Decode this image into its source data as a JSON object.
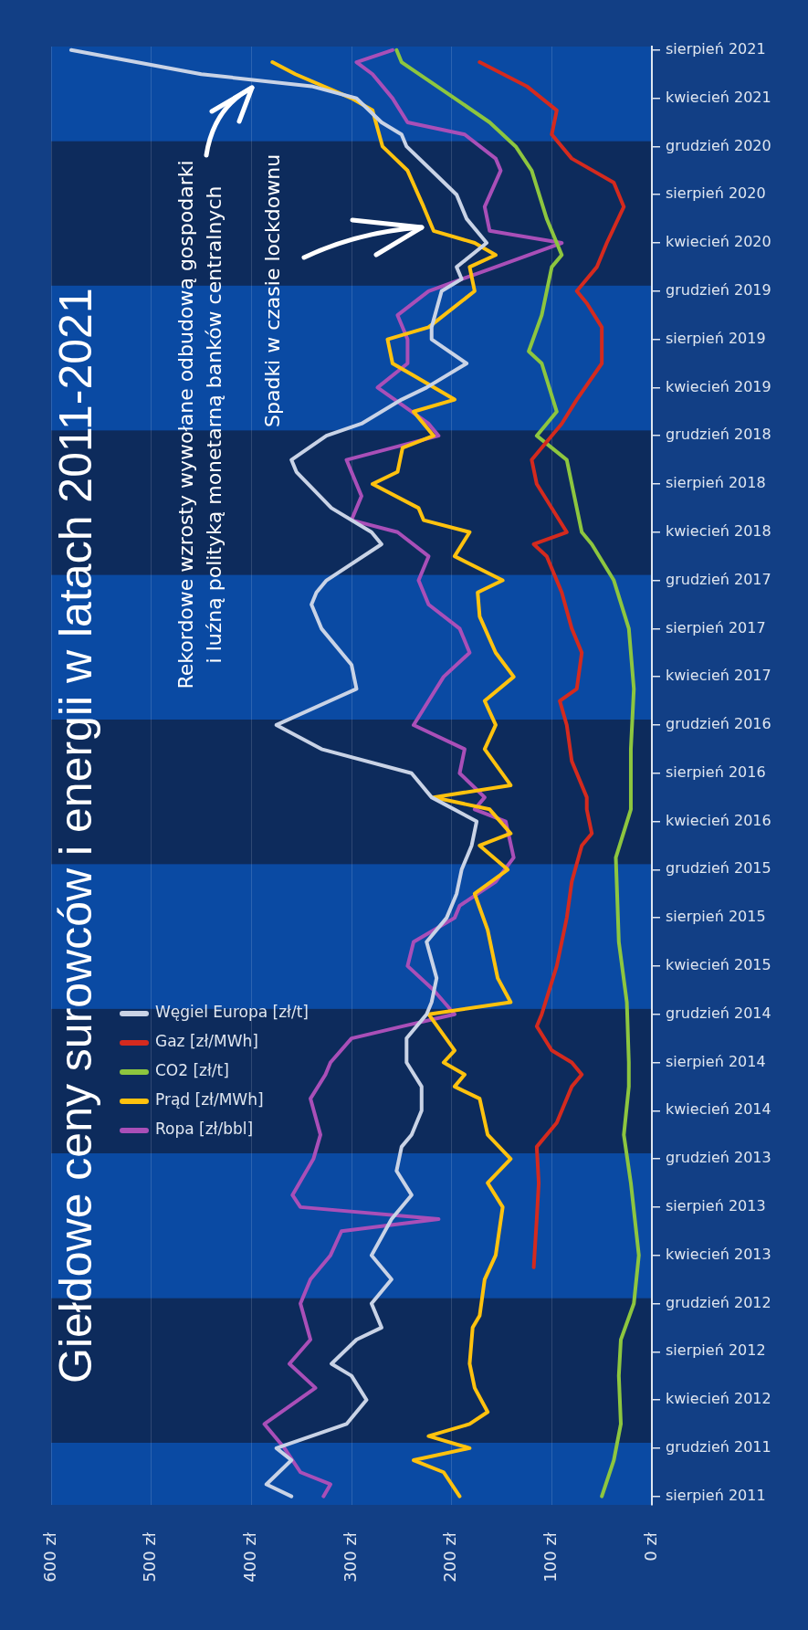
{
  "chart_data": {
    "type": "line",
    "title": "Giełdowe ceny surowców i energii w latach 2011-2021",
    "annotations": [
      "Rekordowe wzrosty wywołane odbudową gospodarki\ni luźną polityką monetarną banków centralnych",
      "Spadki w czasie lockdownu"
    ],
    "orientation": "horizontal",
    "ylim": [
      "2011-07-10",
      "2021-08-10"
    ],
    "xlim": [
      600,
      0
    ],
    "xticks": [
      {
        "value": 0,
        "label": "0 zł"
      },
      {
        "value": 100,
        "label": "100 zł"
      },
      {
        "value": 200,
        "label": "200 zł"
      },
      {
        "value": 300,
        "label": "300 zł"
      },
      {
        "value": 400,
        "label": "400 zł"
      },
      {
        "value": 500,
        "label": "500 zł"
      },
      {
        "value": 600,
        "label": "600 zł"
      }
    ],
    "yticks": [
      {
        "value": "2011-08",
        "label": "sierpień 2011"
      },
      {
        "value": "2011-12",
        "label": "grudzień 2011"
      },
      {
        "value": "2012-04",
        "label": "kwiecień 2012"
      },
      {
        "value": "2012-08",
        "label": "sierpień 2012"
      },
      {
        "value": "2012-12",
        "label": "grudzień 2012"
      },
      {
        "value": "2013-04",
        "label": "kwiecień 2013"
      },
      {
        "value": "2013-08",
        "label": "sierpień 2013"
      },
      {
        "value": "2013-12",
        "label": "grudzień 2013"
      },
      {
        "value": "2014-04",
        "label": "kwiecień 2014"
      },
      {
        "value": "2014-08",
        "label": "sierpień 2014"
      },
      {
        "value": "2014-12",
        "label": "grudzień 2014"
      },
      {
        "value": "2015-04",
        "label": "kwiecień 2015"
      },
      {
        "value": "2015-08",
        "label": "sierpień 2015"
      },
      {
        "value": "2015-12",
        "label": "grudzień 2015"
      },
      {
        "value": "2016-04",
        "label": "kwiecień 2016"
      },
      {
        "value": "2016-08",
        "label": "sierpień 2016"
      },
      {
        "value": "2016-12",
        "label": "grudzień 2016"
      },
      {
        "value": "2017-04",
        "label": "kwiecień 2017"
      },
      {
        "value": "2017-08",
        "label": "sierpień 2017"
      },
      {
        "value": "2017-12",
        "label": "grudzień 2017"
      },
      {
        "value": "2018-04",
        "label": "kwiecień 2018"
      },
      {
        "value": "2018-08",
        "label": "sierpień 2018"
      },
      {
        "value": "2018-12",
        "label": "grudzień 2018"
      },
      {
        "value": "2019-04",
        "label": "kwiecień 2019"
      },
      {
        "value": "2019-08",
        "label": "sierpień 2019"
      },
      {
        "value": "2019-12",
        "label": "grudzień 2019"
      },
      {
        "value": "2020-04",
        "label": "kwiecień 2020"
      },
      {
        "value": "2020-08",
        "label": "sierpień 2020"
      },
      {
        "value": "2020-12",
        "label": "grudzień 2020"
      },
      {
        "value": "2021-04",
        "label": "kwiecień 2021"
      },
      {
        "value": "2021-08",
        "label": "sierpień 2021"
      }
    ],
    "bands": [
      {
        "axis": "y",
        "from": "2011-07-10",
        "to": "2011-12-15",
        "color": "#0a4aa3"
      },
      {
        "axis": "y",
        "from": "2011-12-15",
        "to": "2012-12-15",
        "color": "#0d2b5c"
      },
      {
        "axis": "y",
        "from": "2012-12-15",
        "to": "2013-12-15",
        "color": "#0a4aa3"
      },
      {
        "axis": "y",
        "from": "2013-12-15",
        "to": "2014-12-15",
        "color": "#0d2b5c"
      },
      {
        "axis": "y",
        "from": "2014-12-15",
        "to": "2015-12-15",
        "color": "#0a4aa3"
      },
      {
        "axis": "y",
        "from": "2015-12-15",
        "to": "2016-12-15",
        "color": "#0d2b5c"
      },
      {
        "axis": "y",
        "from": "2016-12-15",
        "to": "2017-12-15",
        "color": "#0a4aa3"
      },
      {
        "axis": "y",
        "from": "2017-12-15",
        "to": "2018-12-15",
        "color": "#0d2b5c"
      },
      {
        "axis": "y",
        "from": "2018-12-15",
        "to": "2019-12-15",
        "color": "#0a4aa3"
      },
      {
        "axis": "y",
        "from": "2019-12-15",
        "to": "2020-12-15",
        "color": "#0d2b5c"
      },
      {
        "axis": "y",
        "from": "2020-12-15",
        "to": "2021-08-10",
        "color": "#0a4aa3"
      }
    ],
    "grid": "x",
    "legend": "bottom left",
    "series": [
      {
        "name": "Węgiel Europa [zł/t]",
        "color": "#c9d3e6",
        "x": [
          "2011-08",
          "2011-09",
          "2011-11",
          "2011-12",
          "2012-02",
          "2012-04",
          "2012-06",
          "2012-07",
          "2012-09",
          "2012-10",
          "2012-12",
          "2013-02",
          "2013-04",
          "2013-07",
          "2013-09",
          "2013-11",
          "2014-01",
          "2014-02",
          "2014-04",
          "2014-06",
          "2014-08",
          "2014-10",
          "2014-12",
          "2015-01",
          "2015-03",
          "2015-06",
          "2015-08",
          "2015-10",
          "2015-12",
          "2016-02",
          "2016-04",
          "2016-06",
          "2016-08",
          "2016-10",
          "2016-12",
          "2017-03",
          "2017-05",
          "2017-08",
          "2017-10",
          "2017-11",
          "2017-12",
          "2018-03",
          "2018-04",
          "2018-06",
          "2018-09",
          "2018-10",
          "2018-12",
          "2019-01",
          "2019-03",
          "2019-04",
          "2019-06",
          "2019-08",
          "2019-09",
          "2019-12",
          "2020-01",
          "2020-02",
          "2020-04",
          "2020-06",
          "2020-08",
          "2020-10",
          "2020-12",
          "2021-01",
          "2021-02",
          "2021-04",
          "2021-05",
          "2021-06",
          "2021-08"
        ],
        "values": [
          360,
          385,
          360,
          375,
          305,
          285,
          300,
          320,
          295,
          270,
          280,
          260,
          280,
          260,
          240,
          255,
          250,
          240,
          230,
          230,
          245,
          245,
          225,
          220,
          215,
          225,
          205,
          195,
          190,
          180,
          175,
          220,
          240,
          330,
          375,
          295,
          300,
          330,
          340,
          335,
          325,
          270,
          280,
          320,
          355,
          360,
          325,
          290,
          250,
          225,
          185,
          220,
          220,
          210,
          190,
          195,
          165,
          185,
          195,
          220,
          245,
          250,
          270,
          295,
          340,
          450,
          580
        ]
      },
      {
        "name": "Gaz [zł/MWh]",
        "color": "#d42a1e",
        "x": [
          "2013-03",
          "2013-07",
          "2013-10",
          "2014-01",
          "2014-03",
          "2014-06",
          "2014-07",
          "2014-08",
          "2014-09",
          "2014-11",
          "2014-12",
          "2015-04",
          "2015-08",
          "2015-11",
          "2016-02",
          "2016-03",
          "2016-05",
          "2016-06",
          "2016-09",
          "2016-12",
          "2017-02",
          "2017-03",
          "2017-06",
          "2017-08",
          "2017-11",
          "2018-02",
          "2018-03",
          "2018-04",
          "2018-08",
          "2018-10",
          "2019-01",
          "2019-03",
          "2019-06",
          "2019-08",
          "2019-09",
          "2019-11",
          "2019-12",
          "2020-02",
          "2020-04",
          "2020-07",
          "2020-09",
          "2020-11",
          "2021-01",
          "2021-03",
          "2021-05",
          "2021-07"
        ],
        "values": [
          118,
          115,
          113,
          115,
          95,
          80,
          70,
          80,
          100,
          115,
          110,
          95,
          85,
          80,
          70,
          60,
          65,
          65,
          80,
          85,
          92,
          75,
          70,
          80,
          90,
          105,
          118,
          85,
          115,
          120,
          90,
          75,
          50,
          50,
          50,
          65,
          75,
          55,
          45,
          28,
          38,
          80,
          100,
          95,
          125,
          172
        ]
      },
      {
        "name": "CO2 [zł/t]",
        "color": "#8dc63f",
        "x": [
          "2011-08",
          "2011-11",
          "2012-02",
          "2012-06",
          "2012-09",
          "2012-12",
          "2013-04",
          "2013-10",
          "2014-02",
          "2014-06",
          "2014-08",
          "2015-01",
          "2015-06",
          "2016-01",
          "2016-05",
          "2016-10",
          "2017-03",
          "2017-08",
          "2017-12",
          "2018-03",
          "2018-04",
          "2018-10",
          "2018-12",
          "2019-02",
          "2019-06",
          "2019-07",
          "2019-10",
          "2020-02",
          "2020-03",
          "2020-06",
          "2020-10",
          "2020-12",
          "2021-02",
          "2021-04",
          "2021-07",
          "2021-08"
        ],
        "values": [
          50,
          38,
          31,
          33,
          31,
          18,
          13,
          21,
          28,
          23,
          23,
          25,
          33,
          36,
          21,
          21,
          18,
          23,
          38,
          60,
          70,
          85,
          115,
          95,
          110,
          123,
          110,
          100,
          90,
          105,
          120,
          136,
          162,
          197,
          250,
          255
        ]
      },
      {
        "name": "Prąd [zł/MWh]",
        "color": "#ffc20e",
        "x": [
          "2011-08",
          "2011-10",
          "2011-11",
          "2011-12",
          "2012-01",
          "2012-02",
          "2012-03",
          "2012-05",
          "2012-07",
          "2012-10",
          "2012-11",
          "2013-02",
          "2013-04",
          "2013-08",
          "2013-10",
          "2013-12",
          "2014-02",
          "2014-05",
          "2014-06",
          "2014-07",
          "2014-08",
          "2014-09",
          "2014-12",
          "2015-01",
          "2015-03",
          "2015-07",
          "2015-10",
          "2015-12",
          "2016-02",
          "2016-03",
          "2016-05",
          "2016-06",
          "2016-07",
          "2016-10",
          "2016-12",
          "2017-02",
          "2017-04",
          "2017-06",
          "2017-09",
          "2017-11",
          "2017-12",
          "2018-02",
          "2018-04",
          "2018-05",
          "2018-06",
          "2018-08",
          "2018-09",
          "2018-11",
          "2018-12",
          "2019-02",
          "2019-03",
          "2019-05",
          "2019-06",
          "2019-08",
          "2019-09",
          "2019-12",
          "2020-02",
          "2020-03",
          "2020-04",
          "2020-05",
          "2020-07",
          "2020-10",
          "2020-12",
          "2021-03",
          "2021-04",
          "2021-06",
          "2021-07"
        ],
        "values": [
          192,
          208,
          238,
          182,
          223,
          182,
          164,
          177,
          182,
          179,
          172,
          167,
          156,
          149,
          164,
          141,
          164,
          172,
          197,
          187,
          208,
          197,
          223,
          141,
          154,
          164,
          177,
          144,
          172,
          141,
          162,
          218,
          141,
          167,
          156,
          167,
          138,
          156,
          172,
          174,
          149,
          197,
          182,
          228,
          233,
          279,
          254,
          249,
          218,
          238,
          197,
          238,
          259,
          264,
          223,
          177,
          182,
          156,
          177,
          218,
          228,
          244,
          269,
          279,
          300,
          356,
          379
        ]
      },
      {
        "name": "Ropa [zł/bbl]",
        "color": "#a94fb8",
        "x": [
          "2011-08",
          "2011-09",
          "2011-10",
          "2011-12",
          "2012-02",
          "2012-05",
          "2012-07",
          "2012-09",
          "2012-12",
          "2013-02",
          "2013-04",
          "2013-06",
          "2013-07",
          "2013-08",
          "2013-09",
          "2013-12",
          "2014-02",
          "2014-05",
          "2014-07",
          "2014-08",
          "2014-10",
          "2014-11",
          "2014-12",
          "2015-02",
          "2015-04",
          "2015-06",
          "2015-08",
          "2015-09",
          "2015-11",
          "2016-01",
          "2016-04",
          "2016-05",
          "2016-06",
          "2016-08",
          "2016-10",
          "2016-12",
          "2017-04",
          "2017-06",
          "2017-08",
          "2017-10",
          "2017-12",
          "2018-02",
          "2018-04",
          "2018-05",
          "2018-07",
          "2018-10",
          "2018-12",
          "2019-01",
          "2019-04",
          "2019-06",
          "2019-08",
          "2019-10",
          "2019-12",
          "2020-02",
          "2020-04",
          "2020-05",
          "2020-07",
          "2020-10",
          "2020-11",
          "2021-01",
          "2021-02",
          "2021-04",
          "2021-06",
          "2021-07",
          "2021-08"
        ],
        "values": [
          328,
          321,
          351,
          367,
          387,
          336,
          362,
          341,
          351,
          341,
          321,
          310,
          213,
          351,
          359,
          338,
          331,
          341,
          326,
          321,
          300,
          249,
          197,
          218,
          244,
          238,
          197,
          192,
          156,
          138,
          146,
          177,
          167,
          192,
          187,
          238,
          208,
          182,
          192,
          223,
          233,
          223,
          254,
          300,
          290,
          305,
          213,
          223,
          274,
          244,
          244,
          254,
          223,
          156,
          90,
          162,
          167,
          151,
          156,
          187,
          244,
          259,
          279,
          295,
          259
        ]
      }
    ]
  }
}
